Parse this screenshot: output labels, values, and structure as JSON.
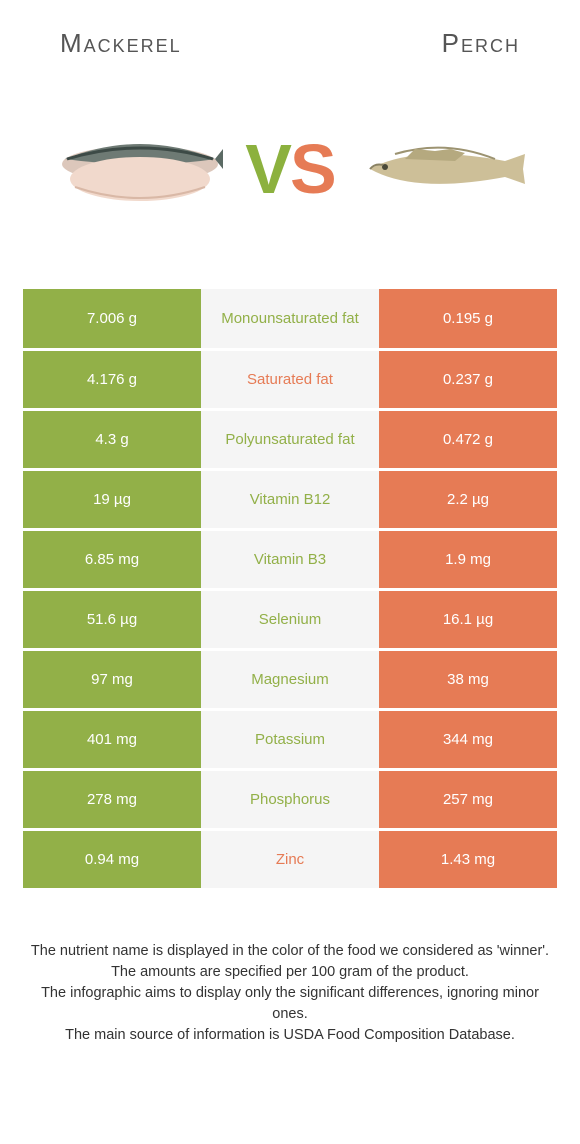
{
  "header": {
    "left_title": "Mackerel",
    "right_title": "Perch"
  },
  "vs": {
    "v": "V",
    "s": "S"
  },
  "colors": {
    "left": "#92b048",
    "right": "#e67b55",
    "mid_bg": "#f5f5f5",
    "mid_text_left": "#92b048",
    "mid_text_right": "#e67b55"
  },
  "rows": [
    {
      "left": "7.006 g",
      "label": "Monounsaturated fat",
      "right": "0.195 g",
      "winner": "left"
    },
    {
      "left": "4.176 g",
      "label": "Saturated fat",
      "right": "0.237 g",
      "winner": "right"
    },
    {
      "left": "4.3 g",
      "label": "Polyunsaturated fat",
      "right": "0.472 g",
      "winner": "left"
    },
    {
      "left": "19 µg",
      "label": "Vitamin B12",
      "right": "2.2 µg",
      "winner": "left"
    },
    {
      "left": "6.85 mg",
      "label": "Vitamin B3",
      "right": "1.9 mg",
      "winner": "left"
    },
    {
      "left": "51.6 µg",
      "label": "Selenium",
      "right": "16.1 µg",
      "winner": "left"
    },
    {
      "left": "97 mg",
      "label": "Magnesium",
      "right": "38 mg",
      "winner": "left"
    },
    {
      "left": "401 mg",
      "label": "Potassium",
      "right": "344 mg",
      "winner": "left"
    },
    {
      "left": "278 mg",
      "label": "Phosphorus",
      "right": "257 mg",
      "winner": "left"
    },
    {
      "left": "0.94 mg",
      "label": "Zinc",
      "right": "1.43 mg",
      "winner": "right"
    }
  ],
  "footnotes": [
    "The nutrient name is displayed in the color of the food we considered as 'winner'.",
    "The amounts are specified per 100 gram of the product.",
    "The infographic aims to display only the significant differences, ignoring minor ones.",
    "The main source of information is USDA Food Composition Database."
  ]
}
